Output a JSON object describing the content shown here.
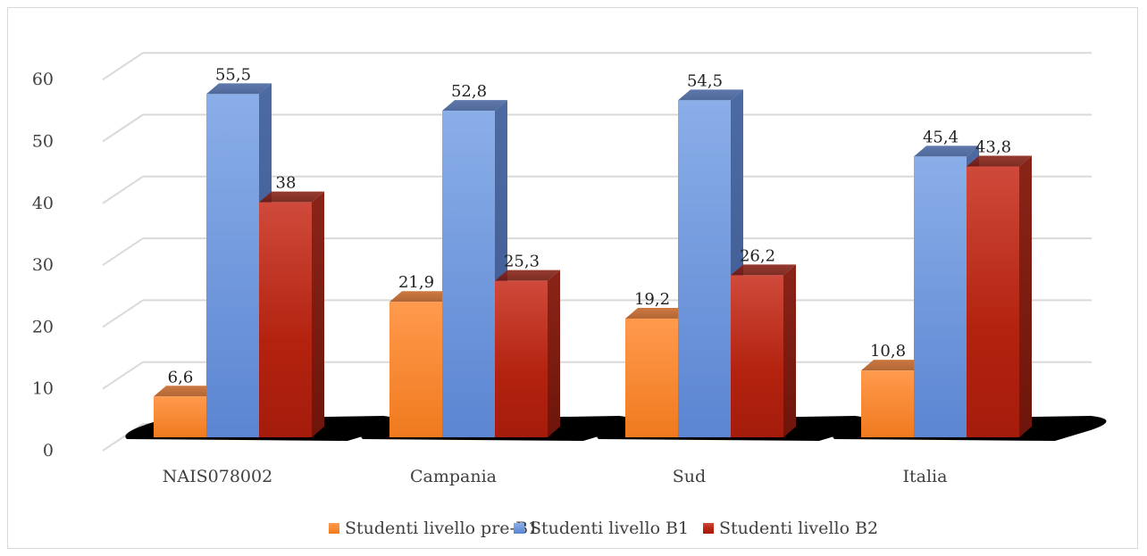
{
  "chart_data": {
    "type": "bar",
    "categories": [
      "NAIS078002",
      "Campania",
      "Sud",
      "Italia"
    ],
    "series": [
      {
        "name": "Studenti livello pre-B1",
        "values": [
          6.6,
          21.9,
          19.2,
          10.8
        ],
        "labels": [
          "6,6",
          "21,9",
          "19,2",
          "10,8"
        ],
        "color": "#f58a33"
      },
      {
        "name": "Studenti livello B1",
        "values": [
          55.5,
          52.8,
          54.5,
          45.4
        ],
        "labels": [
          "55,5",
          "52,8",
          "54,5",
          "45,4"
        ],
        "color": "#6f98dd"
      },
      {
        "name": "Studenti livello B2",
        "values": [
          38,
          25.3,
          26.2,
          43.8
        ],
        "labels": [
          "38",
          "25,3",
          "26,2",
          "43,8"
        ],
        "color": "#c0291b"
      }
    ],
    "yticks": [
      "0",
      "10",
      "20",
      "30",
      "40",
      "50",
      "60"
    ],
    "ylim": [
      0,
      60
    ],
    "grid": true,
    "legend": "bottom",
    "style": "3d-clustered-column"
  }
}
